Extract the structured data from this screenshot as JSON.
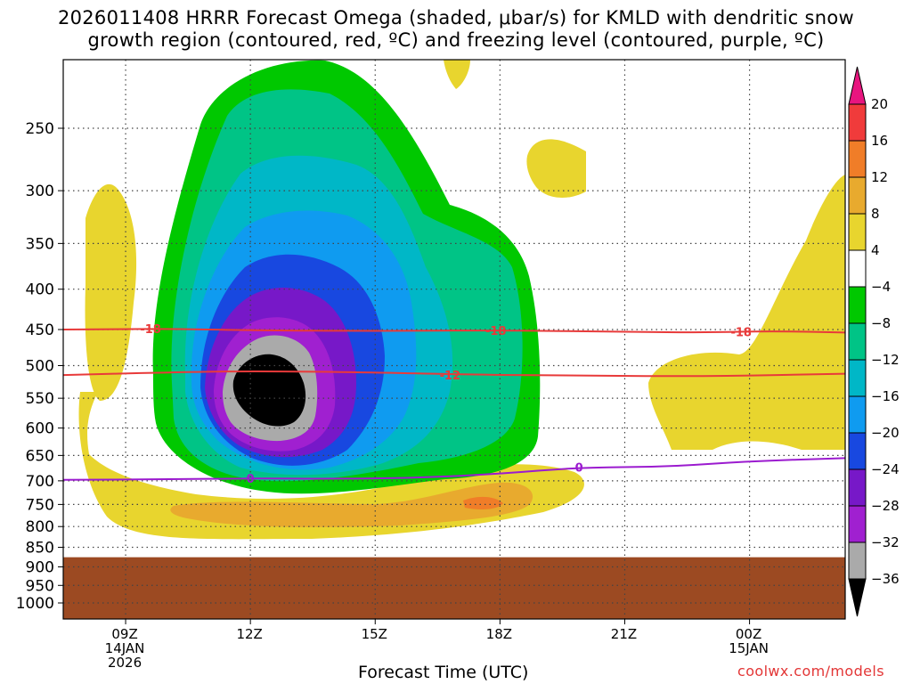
{
  "title": {
    "line1": "2026011408 HRRR Forecast Omega (shaded, μbar/s) for KMLD with dendritic snow",
    "line2": "growth region (contoured, red, ºC) and freezing level (contoured, purple, ºC)"
  },
  "xlabel": "Forecast Time (UTC)",
  "credit": "coolwx.com/models",
  "chart_data": {
    "type": "heatmap",
    "title": "2026011408 HRRR Forecast Omega (shaded, μbar/s) for KMLD with dendritic snow growth region (contoured, red, ºC) and freezing level (contoured, purple, ºC)",
    "xlabel": "Forecast Time (UTC)",
    "ylabel": "",
    "y_ticks": [
      {
        "value": 250,
        "label": "250"
      },
      {
        "value": 300,
        "label": "300"
      },
      {
        "value": 350,
        "label": "350"
      },
      {
        "value": 400,
        "label": "400"
      },
      {
        "value": 450,
        "label": "450"
      },
      {
        "value": 500,
        "label": "500"
      },
      {
        "value": 550,
        "label": "550"
      },
      {
        "value": 600,
        "label": "600"
      },
      {
        "value": 650,
        "label": "650"
      },
      {
        "value": 700,
        "label": "700"
      },
      {
        "value": 750,
        "label": "750"
      },
      {
        "value": 800,
        "label": "800"
      },
      {
        "value": 850,
        "label": "850"
      },
      {
        "value": 900,
        "label": "900"
      },
      {
        "value": 950,
        "label": "950"
      },
      {
        "value": 1000,
        "label": "1000"
      }
    ],
    "y_range": [
      200,
      1030
    ],
    "x_range_hours": [
      7.5,
      26.3
    ],
    "x_ticks": [
      {
        "hour": 9,
        "lines": [
          "09Z",
          "14JAN",
          "2026"
        ]
      },
      {
        "hour": 12,
        "lines": [
          "12Z"
        ]
      },
      {
        "hour": 15,
        "lines": [
          "15Z"
        ]
      },
      {
        "hour": 18,
        "lines": [
          "18Z"
        ]
      },
      {
        "hour": 21,
        "lines": [
          "21Z"
        ]
      },
      {
        "hour": 24,
        "lines": [
          "00Z",
          "15JAN"
        ]
      }
    ],
    "grid": true,
    "legend": "colorbar-right",
    "colorbar": {
      "levels": [
        "20",
        "16",
        "12",
        "8",
        "4",
        "−4",
        "−8",
        "−12",
        "−16",
        "−20",
        "−24",
        "−28",
        "−32",
        "−36"
      ],
      "colors": [
        "#e8157f",
        "#f03b3b",
        "#f07d28",
        "#e8aa2e",
        "#e8d52e",
        "#ffffff",
        "#00c800",
        "#00c486",
        "#00b7c7",
        "#0f9bf0",
        "#1848e0",
        "#7718c8",
        "#a020d0",
        "#aaaaaa",
        "#000000"
      ]
    },
    "ground": {
      "top_mb": 875,
      "color": "#9c4a22"
    },
    "contours": [
      {
        "name": "-18",
        "color": "#e83a3a",
        "points": [
          [
            7.5,
            450
          ],
          [
            10,
            449
          ],
          [
            12,
            451
          ],
          [
            15,
            452
          ],
          [
            18,
            451
          ],
          [
            21,
            453
          ],
          [
            23,
            454
          ],
          [
            24.5,
            452
          ],
          [
            26.3,
            454
          ]
        ],
        "labels": [
          {
            "hour": 9.6,
            "mb": 449
          },
          {
            "hour": 17.9,
            "mb": 451
          },
          {
            "hour": 23.8,
            "mb": 453
          }
        ]
      },
      {
        "name": "-12",
        "color": "#e83a3a",
        "points": [
          [
            7.5,
            514
          ],
          [
            10,
            510
          ],
          [
            12,
            508
          ],
          [
            15,
            510
          ],
          [
            17,
            513
          ],
          [
            20,
            515
          ],
          [
            23,
            516
          ],
          [
            26.3,
            512
          ]
        ],
        "labels": [
          {
            "hour": 16.8,
            "mb": 514
          }
        ]
      },
      {
        "name": "0",
        "color": "#9b1bcf",
        "points": [
          [
            7.5,
            698
          ],
          [
            10,
            697
          ],
          [
            12,
            695
          ],
          [
            14,
            696
          ],
          [
            16,
            694
          ],
          [
            18,
            686
          ],
          [
            19.9,
            673
          ],
          [
            22,
            672
          ],
          [
            24,
            661
          ],
          [
            26.3,
            655
          ]
        ],
        "labels": [
          {
            "hour": 12.0,
            "mb": 695
          },
          {
            "hour": 19.9,
            "mb": 673
          }
        ]
      }
    ]
  }
}
